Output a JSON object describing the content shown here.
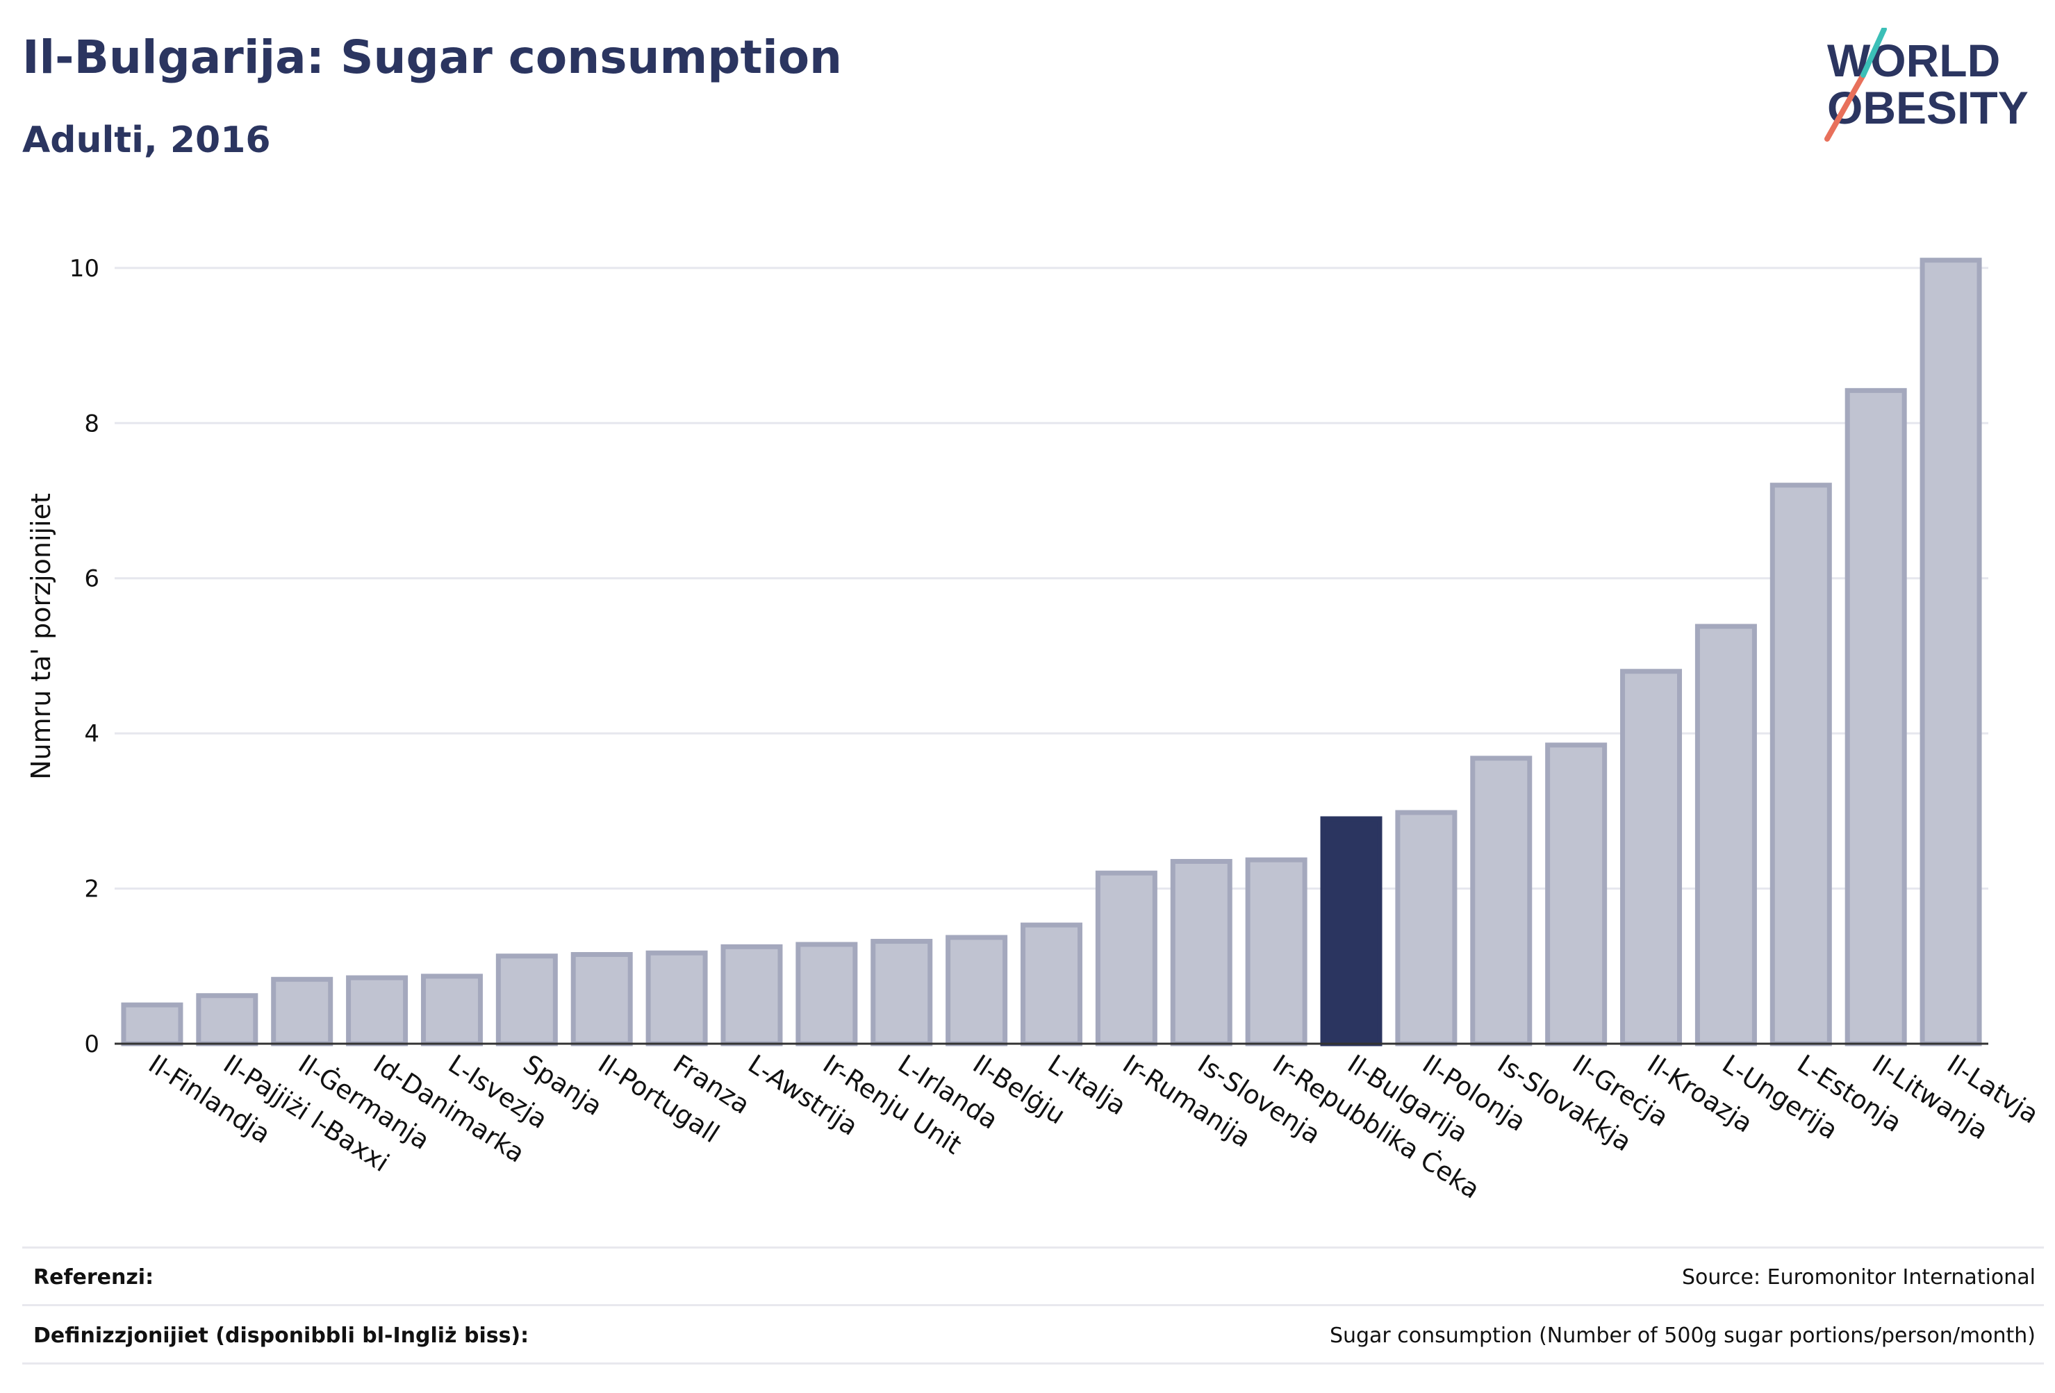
{
  "header": {
    "title": "Il-Bulgarija: Sugar consumption",
    "subtitle": "Adulti, 2016"
  },
  "logo": {
    "line1": "WORLD",
    "line2": "OBESITY",
    "slash_colors": [
      "#e8705b",
      "#3bbfb7"
    ]
  },
  "chart_data": {
    "type": "bar",
    "ylabel": "Numru ta' porzjonijiet",
    "ylim": [
      0,
      10.5
    ],
    "yticks": [
      0,
      2,
      4,
      6,
      8,
      10
    ],
    "grid": true,
    "highlight": "Il-Bulgarija",
    "colors": {
      "bar": "#c0c3d1",
      "bar_edge": "#a4a8bd",
      "highlight": "#2b3560"
    },
    "categories": [
      "Il-Finlandja",
      "Il-Pajjiżi l-Baxxi",
      "Il-Ġermanja",
      "Id-Danimarka",
      "L-Isvezja",
      "Spanja",
      "Il-Portugall",
      "Franza",
      "L-Awstrija",
      "Ir-Renju Unit",
      "L-Irlanda",
      "Il-Belġju",
      "L-Italja",
      "Ir-Rumanija",
      "Is-Slovenja",
      "Ir-Repubblika Ċeka",
      "Il-Bulgarija",
      "Il-Polonja",
      "Is-Slovakkja",
      "Il-Greċja",
      "Il-Kroazja",
      "L-Ungerija",
      "L-Estonja",
      "Il-Litwanja",
      "Il-Latvja"
    ],
    "values": [
      0.5,
      0.62,
      0.83,
      0.85,
      0.87,
      1.13,
      1.15,
      1.17,
      1.25,
      1.28,
      1.32,
      1.37,
      1.53,
      2.2,
      2.35,
      2.37,
      2.9,
      2.98,
      3.68,
      3.85,
      4.8,
      5.38,
      7.2,
      8.42,
      10.1
    ]
  },
  "footer": {
    "references_label": "Referenzi:",
    "references_value": "Source: Euromonitor International",
    "definitions_label": "Definizzjonijiet (disponibbli bl-Ingliż biss):",
    "definitions_value": "Sugar consumption (Number of 500g sugar portions/person/month)"
  }
}
